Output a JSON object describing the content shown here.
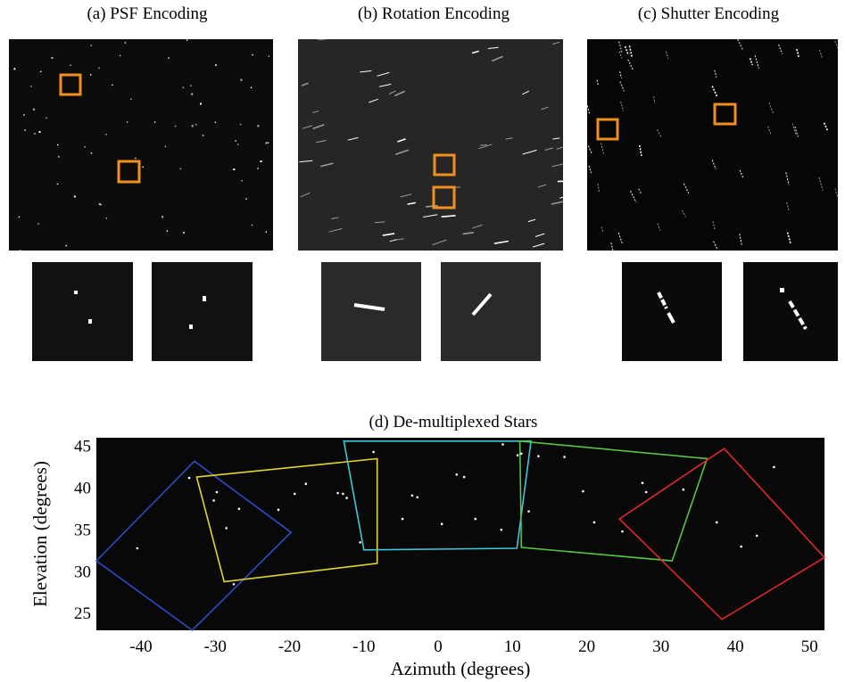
{
  "panels": {
    "a": {
      "caption": "(a)  PSF Encoding"
    },
    "b": {
      "caption": "(b)  Rotation Encoding"
    },
    "c": {
      "caption": "(c)  Shutter Encoding"
    }
  },
  "colors": {
    "highlight": "#f0901e",
    "background": "#ffffff",
    "plot_bg": "#080808"
  },
  "chart_data": {
    "type": "scatter",
    "title": "(d)  De-multiplexed Stars",
    "xlabel": "Azimuth (degrees)",
    "ylabel": "Elevation (degrees)",
    "xlim": [
      -46,
      52
    ],
    "ylim": [
      23,
      46
    ],
    "xticks": [
      -40,
      -30,
      -20,
      -10,
      0,
      10,
      20,
      30,
      40,
      50
    ],
    "yticks": [
      25,
      30,
      35,
      40,
      45
    ],
    "grid": false,
    "fields_of_view": [
      {
        "color": "#2b4cc4",
        "outline": [
          [
            -32.8,
            43.2
          ],
          [
            -19.8,
            34.7
          ],
          [
            -33.1,
            23
          ],
          [
            -46,
            31.3
          ]
        ]
      },
      {
        "color": "#e3d52b",
        "outline": [
          [
            -32.5,
            41.3
          ],
          [
            -8.2,
            43.5
          ],
          [
            -8.2,
            31
          ],
          [
            -28.8,
            28.8
          ]
        ]
      },
      {
        "color": "#41c7d8",
        "outline": [
          [
            -12.7,
            45.6
          ],
          [
            12.5,
            45.6
          ],
          [
            10.6,
            32.8
          ],
          [
            -10,
            32.6
          ]
        ]
      },
      {
        "color": "#57c443",
        "outline": [
          [
            11,
            45.6
          ],
          [
            36.2,
            43.5
          ],
          [
            31.5,
            31.3
          ],
          [
            11.2,
            32.9
          ]
        ]
      },
      {
        "color": "#e02828",
        "outline": [
          [
            38.5,
            44.7
          ],
          [
            52,
            31.7
          ],
          [
            38.2,
            24.3
          ],
          [
            24.4,
            36.3
          ]
        ]
      }
    ],
    "stars": [
      [
        -40.5,
        32.8
      ],
      [
        -33.5,
        41.2
      ],
      [
        -30.2,
        38.5
      ],
      [
        -29.8,
        39.5
      ],
      [
        -28.5,
        35.2
      ],
      [
        -26.8,
        37.5
      ],
      [
        -27.5,
        28.5
      ],
      [
        -21.5,
        37.4
      ],
      [
        -19.3,
        39.3
      ],
      [
        -17.8,
        40.5
      ],
      [
        -13.5,
        39.4
      ],
      [
        -12.8,
        39.3
      ],
      [
        -12.3,
        38.8
      ],
      [
        -10.5,
        33.5
      ],
      [
        -8.7,
        44.3
      ],
      [
        -4.8,
        36.3
      ],
      [
        -3.5,
        39.1
      ],
      [
        -2.8,
        38.9
      ],
      [
        0.5,
        35.7
      ],
      [
        2.5,
        41.6
      ],
      [
        3.5,
        41.3
      ],
      [
        5,
        36.3
      ],
      [
        8.5,
        35
      ],
      [
        8.7,
        45.2
      ],
      [
        10.7,
        43.9
      ],
      [
        11.2,
        44.1
      ],
      [
        12.2,
        37.2
      ],
      [
        13.5,
        43.8
      ],
      [
        17,
        43.7
      ],
      [
        19.5,
        39.6
      ],
      [
        21,
        35.9
      ],
      [
        24.8,
        34.8
      ],
      [
        27.5,
        40.6
      ],
      [
        28,
        39.5
      ],
      [
        33,
        39.8
      ],
      [
        37.5,
        35.9
      ],
      [
        40.8,
        33
      ],
      [
        42.9,
        34.3
      ],
      [
        45.2,
        42.5
      ]
    ]
  }
}
